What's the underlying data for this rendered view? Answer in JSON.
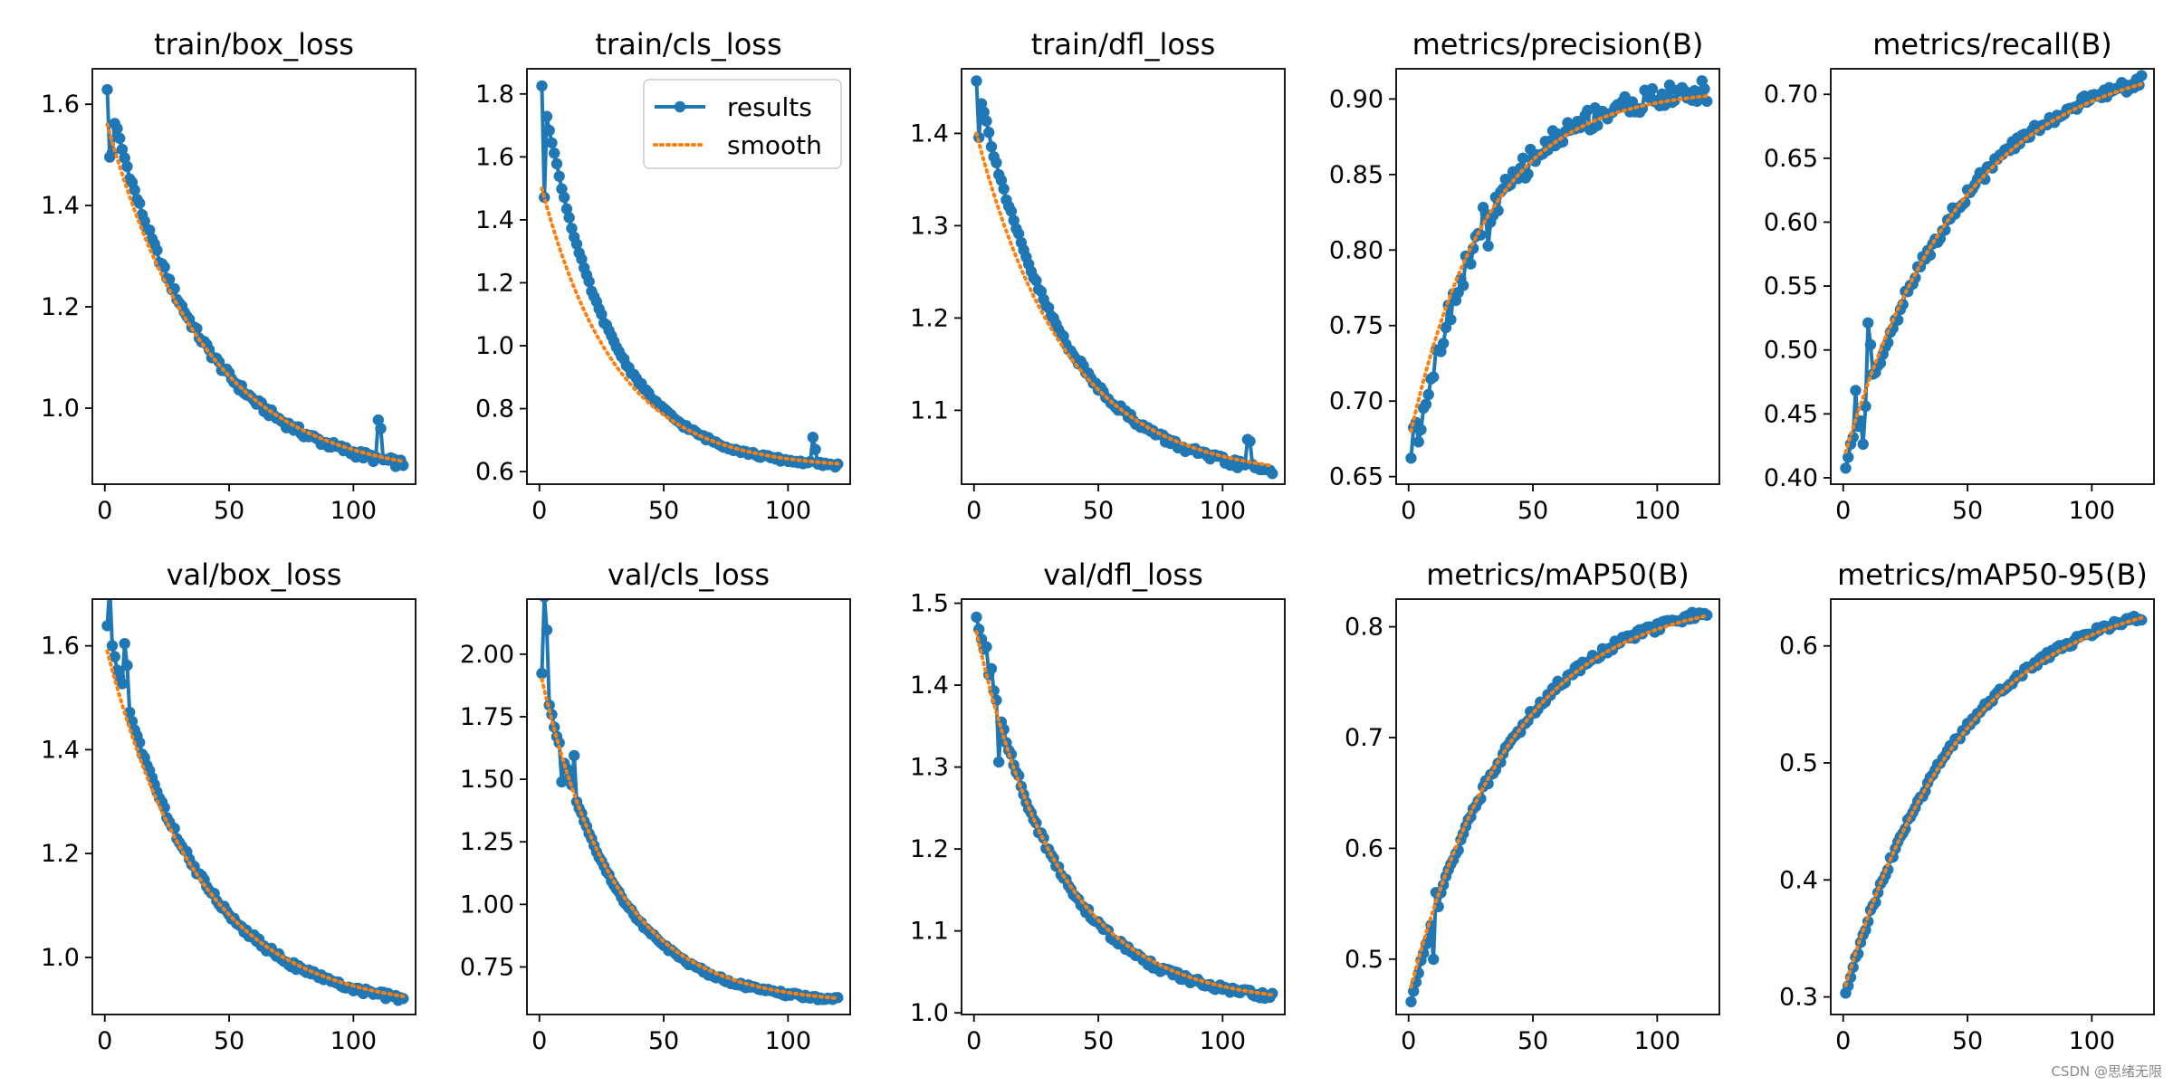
{
  "colors": {
    "results": "#1f77b4",
    "smooth": "#ff7f0e",
    "axis": "#000000"
  },
  "watermark": "CSDN @思绪无限",
  "legend": {
    "results_label": "results",
    "smooth_label": "smooth"
  },
  "chart_data": [
    {
      "type": "line",
      "title": "train/box_loss",
      "xlim": [
        -5,
        125
      ],
      "ylim": [
        0.85,
        1.67
      ],
      "xticks": [
        0,
        50,
        100
      ],
      "yticks": [
        1.0,
        1.2,
        1.4,
        1.6
      ],
      "ytick_labels": [
        "1.0",
        "1.2",
        "1.4",
        "1.6"
      ],
      "grid": false,
      "legend": null,
      "series": [
        {
          "name": "results",
          "curve": "decay",
          "start": [
            1,
            1.625
          ],
          "end": [
            120,
            0.89
          ],
          "k": 3.2,
          "jitter": 0.008,
          "spikes": [
            [
              2,
              -0.11
            ],
            [
              3,
              -0.08
            ],
            [
              110,
              0.07
            ],
            [
              111,
              0.06
            ]
          ]
        },
        {
          "name": "smooth",
          "curve": "decay",
          "start": [
            1,
            1.56
          ],
          "end": [
            120,
            0.895
          ],
          "k": 3.0,
          "jitter": 0
        }
      ]
    },
    {
      "type": "line",
      "title": "train/cls_loss",
      "xlim": [
        -5,
        125
      ],
      "ylim": [
        0.56,
        1.88
      ],
      "xticks": [
        0,
        50,
        100
      ],
      "yticks": [
        0.6,
        0.8,
        1.0,
        1.2,
        1.4,
        1.6,
        1.8
      ],
      "ytick_labels": [
        "0.6",
        "0.8",
        "1.0",
        "1.2",
        "1.4",
        "1.6",
        "1.8"
      ],
      "grid": false,
      "legend": "upper right",
      "series": [
        {
          "name": "results",
          "curve": "decay",
          "start": [
            1,
            1.82
          ],
          "end": [
            120,
            0.62
          ],
          "k": 4.5,
          "jitter": 0.006,
          "spikes": [
            [
              2,
              -0.3
            ],
            [
              110,
              0.08
            ],
            [
              111,
              0.04
            ]
          ]
        },
        {
          "name": "smooth",
          "curve": "decay",
          "start": [
            1,
            1.5
          ],
          "end": [
            120,
            0.625
          ],
          "k": 4.0,
          "jitter": 0
        }
      ]
    },
    {
      "type": "line",
      "title": "train/dfl_loss",
      "xlim": [
        -5,
        125
      ],
      "ylim": [
        1.02,
        1.47
      ],
      "xticks": [
        0,
        50,
        100
      ],
      "yticks": [
        1.1,
        1.2,
        1.3,
        1.4
      ],
      "ytick_labels": [
        "1.1",
        "1.2",
        "1.3",
        "1.4"
      ],
      "grid": false,
      "legend": null,
      "series": [
        {
          "name": "results",
          "curve": "decay",
          "start": [
            1,
            1.46
          ],
          "end": [
            120,
            1.035
          ],
          "k": 3.5,
          "jitter": 0.004,
          "spikes": [
            [
              2,
              -0.05
            ],
            [
              110,
              0.03
            ],
            [
              111,
              0.025
            ]
          ]
        },
        {
          "name": "smooth",
          "curve": "decay",
          "start": [
            1,
            1.4
          ],
          "end": [
            120,
            1.04
          ],
          "k": 3.3,
          "jitter": 0
        }
      ]
    },
    {
      "type": "line",
      "title": "metrics/precision(B)",
      "xlim": [
        -5,
        125
      ],
      "ylim": [
        0.645,
        0.92
      ],
      "xticks": [
        0,
        50,
        100
      ],
      "yticks": [
        0.65,
        0.7,
        0.75,
        0.8,
        0.85,
        0.9
      ],
      "ytick_labels": [
        "0.65",
        "0.70",
        "0.75",
        "0.80",
        "0.85",
        "0.90"
      ],
      "grid": false,
      "legend": null,
      "series": [
        {
          "name": "results",
          "curve": "rise",
          "start": [
            1,
            0.656
          ],
          "end": [
            120,
            0.905
          ],
          "k": 4.0,
          "jitter": 0.008,
          "spikes": [
            [
              2,
              0.02
            ],
            [
              3,
              0.015
            ],
            [
              30,
              0.015
            ],
            [
              32,
              -0.015
            ]
          ]
        },
        {
          "name": "smooth",
          "curve": "rise",
          "start": [
            1,
            0.68
          ],
          "end": [
            120,
            0.902
          ],
          "k": 3.8,
          "jitter": 0
        }
      ]
    },
    {
      "type": "line",
      "title": "metrics/recall(B)",
      "xlim": [
        -5,
        125
      ],
      "ylim": [
        0.395,
        0.72
      ],
      "xticks": [
        0,
        50,
        100
      ],
      "yticks": [
        0.4,
        0.45,
        0.5,
        0.55,
        0.6,
        0.65,
        0.7
      ],
      "ytick_labels": [
        "0.40",
        "0.45",
        "0.50",
        "0.55",
        "0.60",
        "0.65",
        "0.70"
      ],
      "grid": false,
      "legend": null,
      "series": [
        {
          "name": "results",
          "curve": "rise",
          "start": [
            1,
            0.408
          ],
          "end": [
            120,
            0.71
          ],
          "k": 2.6,
          "jitter": 0.005,
          "spikes": [
            [
              5,
              0.03
            ],
            [
              8,
              -0.03
            ],
            [
              10,
              0.05
            ],
            [
              11,
              0.03
            ]
          ]
        },
        {
          "name": "smooth",
          "curve": "rise",
          "start": [
            1,
            0.42
          ],
          "end": [
            120,
            0.708
          ],
          "k": 2.5,
          "jitter": 0
        }
      ]
    },
    {
      "type": "line",
      "title": "val/box_loss",
      "xlim": [
        -5,
        125
      ],
      "ylim": [
        0.89,
        1.69
      ],
      "xticks": [
        0,
        50,
        100
      ],
      "yticks": [
        1.0,
        1.2,
        1.4,
        1.6
      ],
      "ytick_labels": [
        "1.0",
        "1.2",
        "1.4",
        "1.6"
      ],
      "grid": false,
      "legend": null,
      "series": [
        {
          "name": "results",
          "curve": "decay",
          "start": [
            1,
            1.635
          ],
          "end": [
            120,
            0.92
          ],
          "k": 3.3,
          "jitter": 0.006,
          "spikes": [
            [
              2,
              0.1
            ],
            [
              3,
              0.0
            ],
            [
              8,
              0.1
            ],
            [
              9,
              0.08
            ]
          ]
        },
        {
          "name": "smooth",
          "curve": "decay",
          "start": [
            1,
            1.59
          ],
          "end": [
            120,
            0.925
          ],
          "k": 3.2,
          "jitter": 0
        }
      ]
    },
    {
      "type": "line",
      "title": "val/cls_loss",
      "xlim": [
        -5,
        125
      ],
      "ylim": [
        0.56,
        2.22
      ],
      "xticks": [
        0,
        50,
        100
      ],
      "yticks": [
        0.75,
        1.0,
        1.25,
        1.5,
        1.75,
        2.0
      ],
      "ytick_labels": [
        "0.75",
        "1.00",
        "1.25",
        "1.50",
        "1.75",
        "2.00"
      ],
      "grid": false,
      "legend": null,
      "series": [
        {
          "name": "results",
          "curve": "decay",
          "start": [
            1,
            1.93
          ],
          "end": [
            120,
            0.62
          ],
          "k": 4.2,
          "jitter": 0.008,
          "spikes": [
            [
              2,
              0.35
            ],
            [
              3,
              0.25
            ],
            [
              9,
              -0.12
            ],
            [
              14,
              0.15
            ]
          ]
        },
        {
          "name": "smooth",
          "curve": "decay",
          "start": [
            1,
            1.9
          ],
          "end": [
            120,
            0.625
          ],
          "k": 4.0,
          "jitter": 0
        }
      ]
    },
    {
      "type": "line",
      "title": "val/dfl_loss",
      "xlim": [
        -5,
        125
      ],
      "ylim": [
        0.998,
        1.505
      ],
      "xticks": [
        0,
        50,
        100
      ],
      "yticks": [
        1.0,
        1.1,
        1.2,
        1.3,
        1.4,
        1.5
      ],
      "ytick_labels": [
        "1.0",
        "1.1",
        "1.2",
        "1.3",
        "1.4",
        "1.5"
      ],
      "grid": false,
      "legend": null,
      "series": [
        {
          "name": "results",
          "curve": "decay",
          "start": [
            1,
            1.485
          ],
          "end": [
            120,
            1.02
          ],
          "k": 3.8,
          "jitter": 0.004,
          "spikes": [
            [
              5,
              0.02
            ],
            [
              7,
              0.02
            ],
            [
              10,
              -0.06
            ]
          ]
        },
        {
          "name": "smooth",
          "curve": "decay",
          "start": [
            1,
            1.465
          ],
          "end": [
            120,
            1.022
          ],
          "k": 3.6,
          "jitter": 0
        }
      ]
    },
    {
      "type": "line",
      "title": "metrics/mAP50(B)",
      "xlim": [
        -5,
        125
      ],
      "ylim": [
        0.45,
        0.825
      ],
      "xticks": [
        0,
        50,
        100
      ],
      "yticks": [
        0.5,
        0.6,
        0.7,
        0.8
      ],
      "ytick_labels": [
        "0.5",
        "0.6",
        "0.7",
        "0.8"
      ],
      "grid": false,
      "legend": null,
      "series": [
        {
          "name": "results",
          "curve": "rise",
          "start": [
            1,
            0.462
          ],
          "end": [
            120,
            0.812
          ],
          "k": 3.0,
          "jitter": 0.004,
          "spikes": [
            [
              10,
              -0.04
            ],
            [
              11,
              0.02
            ]
          ]
        },
        {
          "name": "smooth",
          "curve": "rise",
          "start": [
            1,
            0.475
          ],
          "end": [
            120,
            0.81
          ],
          "k": 2.9,
          "jitter": 0
        }
      ]
    },
    {
      "type": "line",
      "title": "metrics/mAP50-95(B)",
      "xlim": [
        -5,
        125
      ],
      "ylim": [
        0.285,
        0.64
      ],
      "xticks": [
        0,
        50,
        100
      ],
      "yticks": [
        0.3,
        0.4,
        0.5,
        0.6
      ],
      "ytick_labels": [
        "0.3",
        "0.4",
        "0.5",
        "0.6"
      ],
      "grid": false,
      "legend": null,
      "series": [
        {
          "name": "results",
          "curve": "rise",
          "start": [
            1,
            0.303
          ],
          "end": [
            120,
            0.625
          ],
          "k": 2.6,
          "jitter": 0.003,
          "spikes": []
        },
        {
          "name": "smooth",
          "curve": "rise",
          "start": [
            1,
            0.31
          ],
          "end": [
            120,
            0.624
          ],
          "k": 2.5,
          "jitter": 0
        }
      ]
    }
  ]
}
